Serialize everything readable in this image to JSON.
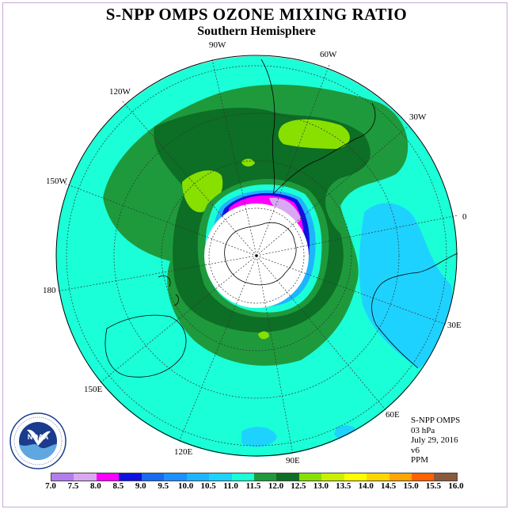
{
  "title": "S-NPP OMPS OZONE MIXING RATIO",
  "subtitle": "Southern Hemisphere",
  "longitude_labels": {
    "w90": "90W",
    "w60": "60W",
    "w30": "30W",
    "w120": "120W",
    "w150": "150W",
    "zero": "0",
    "lon180": "180",
    "e30": "30E",
    "e60": "60E",
    "e90": "90E",
    "e120": "120E",
    "e150": "150E"
  },
  "info": {
    "instrument": "S-NPP OMPS",
    "level": "03 hPa",
    "date": "July 29, 2016",
    "version": "v6",
    "units": "PPM"
  },
  "logo": {
    "text": "NOAA",
    "ring_text": "NATIONAL OCEANIC AND ATMOSPHERIC ADMINISTRATION · U.S. DEPARTMENT OF COMMERCE"
  },
  "colorbar": {
    "ticks": [
      "7.0",
      "7.5",
      "8.0",
      "8.5",
      "9.0",
      "9.5",
      "10.0",
      "10.5",
      "11.0",
      "11.5",
      "12.0",
      "12.5",
      "13.0",
      "13.5",
      "14.0",
      "14.5",
      "15.0",
      "15.5",
      "16.0"
    ],
    "colors": [
      "#b27cf0",
      "#d9a8f2",
      "#ff00ff",
      "#1010e0",
      "#1a6bef",
      "#1e90ff",
      "#1eb4ff",
      "#1ed2ff",
      "#1affd8",
      "#1e9a3c",
      "#0d6e25",
      "#88e000",
      "#c8f000",
      "#ffff00",
      "#ffd700",
      "#ffa500",
      "#ff6000",
      "#ff0000",
      "#8b5a3c"
    ]
  },
  "colors": {
    "background_field": "#1affd8",
    "dark_green": "#0d6e25",
    "mid_green": "#1e9a3c",
    "light_green": "#88e000",
    "light_blue": "#1ed2ff",
    "pole_mask": "#ffffff"
  }
}
